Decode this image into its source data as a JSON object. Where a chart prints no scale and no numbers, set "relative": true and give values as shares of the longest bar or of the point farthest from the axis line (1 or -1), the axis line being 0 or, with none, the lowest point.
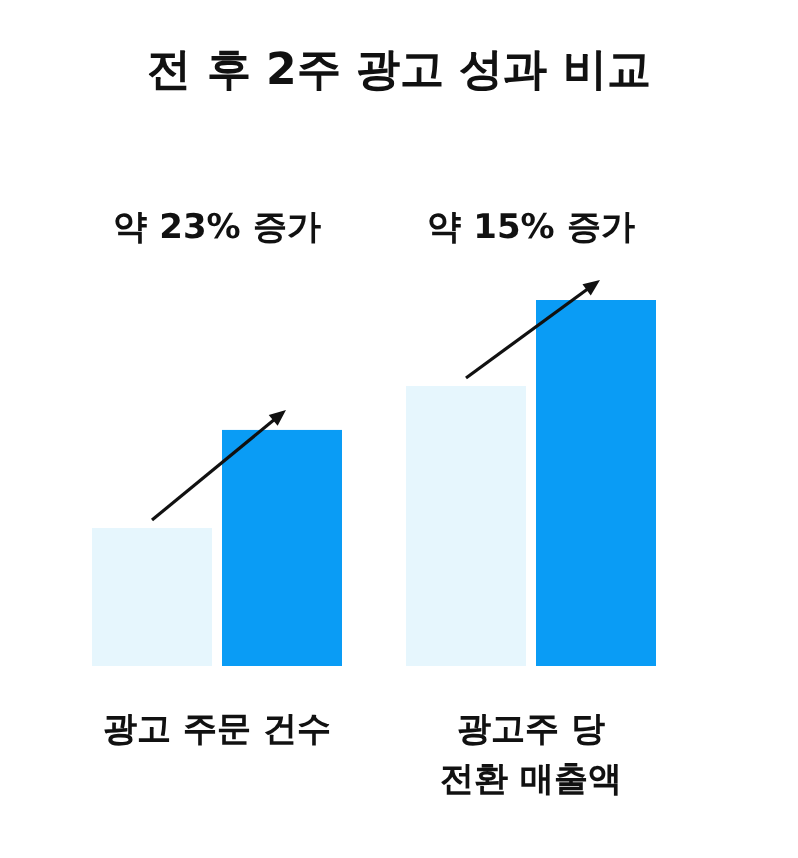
{
  "chart_data": {
    "type": "bar",
    "title": "전 후 2주 광고 성과 비교",
    "relative": true,
    "categories": [
      "광고 주문 건수",
      "광고주 당\n전환 매출액"
    ],
    "series": [
      {
        "color": "#e6f6fd",
        "values": [
          0.377,
          0.765
        ]
      },
      {
        "color": "#0a9cf5",
        "values": [
          0.645,
          1
        ]
      }
    ],
    "annotations": [
      "약 23% 증가",
      "약 15% 증가"
    ]
  }
}
